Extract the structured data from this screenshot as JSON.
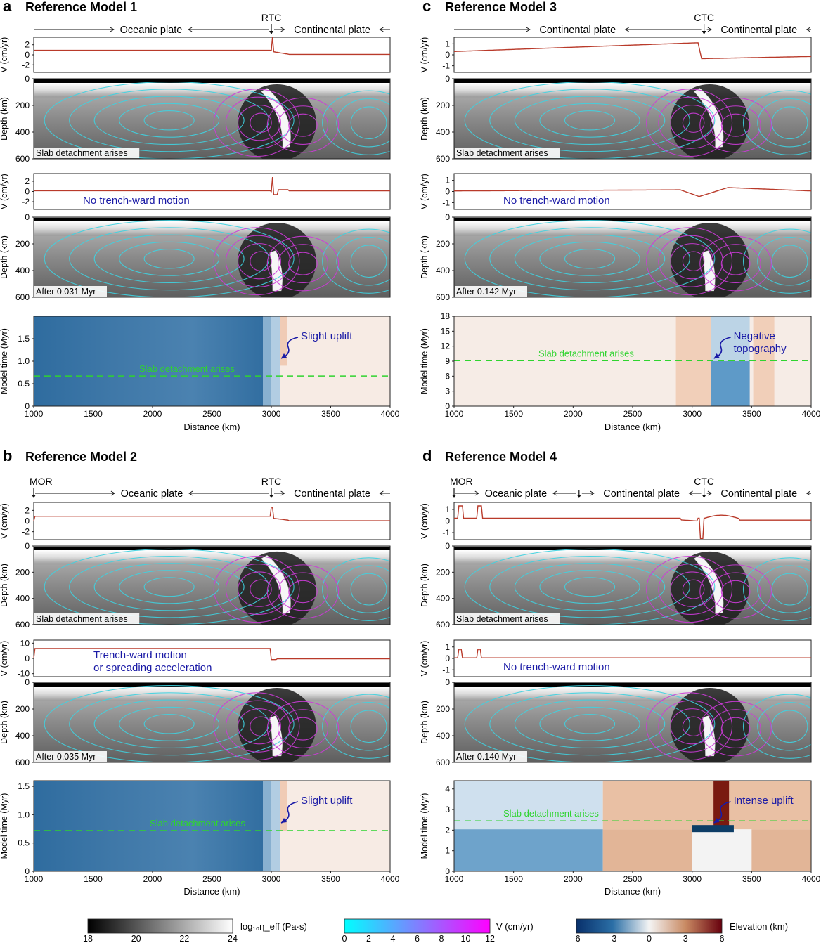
{
  "panels": [
    {
      "letter": "a",
      "title": "Reference Model 1",
      "boundary": {
        "type": "RTC",
        "label": "RTC"
      },
      "plates": [
        "Oceanic plate",
        "Continental plate"
      ],
      "has_mor": false,
      "mor_label": "",
      "mid_arrow": false,
      "velocity_top": {
        "ylabel": "V (cm/yr)",
        "ticks": [
          "2",
          "0",
          "-2"
        ],
        "tick_values": [
          2,
          0,
          -2
        ],
        "range": [
          -3.5,
          3.5
        ]
      },
      "depth_top": {
        "ylabel": "Depth (km)",
        "ticks": [
          "0",
          "200",
          "400",
          "600"
        ],
        "caption": "Slab detachment arises"
      },
      "velocity_mid": {
        "ylabel": "V (cm/yr)",
        "ticks": [
          "2",
          "0",
          "-2"
        ],
        "tick_values": [
          2,
          0,
          -2
        ],
        "range": [
          -3.5,
          3.5
        ],
        "annotation": [
          "No trench-ward motion"
        ]
      },
      "depth_mid": {
        "ylabel": "Depth (km)",
        "ticks": [
          "0",
          "200",
          "400",
          "600"
        ],
        "caption": "After 0.031 Myr"
      },
      "time_plot": {
        "ylabel": "Model time (Myr)",
        "yticks": [
          "0",
          "0.5",
          "1.0",
          "1.5"
        ],
        "ytick_values": [
          0,
          0.5,
          1.0,
          1.5
        ],
        "ymax": 2.0,
        "xlabel": "Distance (km)",
        "xticks": [
          "1000",
          "1500",
          "2000",
          "2500",
          "3000",
          "3500",
          "4000"
        ],
        "detachment_time": 0.67,
        "detachment_label": "Slab detachment arises",
        "annotation": [
          "Slight uplift"
        ]
      }
    },
    {
      "letter": "b",
      "title": "Reference Model 2",
      "boundary": {
        "type": "RTC",
        "label": "RTC"
      },
      "plates": [
        "Oceanic plate",
        "Continental plate"
      ],
      "has_mor": true,
      "mor_label": "MOR",
      "mid_arrow": false,
      "velocity_top": {
        "ylabel": "V (cm/yr)",
        "ticks": [
          "2",
          "0",
          "-2"
        ],
        "tick_values": [
          2,
          0,
          -2
        ],
        "range": [
          -3.5,
          3.5
        ]
      },
      "depth_top": {
        "ylabel": "Depth (km)",
        "ticks": [
          "0",
          "200",
          "400",
          "600"
        ],
        "caption": "Slab detachment arises"
      },
      "velocity_mid": {
        "ylabel": "V (cm/yr)",
        "ticks": [
          "10",
          "0",
          "-10"
        ],
        "tick_values": [
          10,
          0,
          -10
        ],
        "range": [
          -12,
          12
        ],
        "annotation": [
          "Trench-ward motion",
          "or spreading acceleration"
        ]
      },
      "depth_mid": {
        "ylabel": "Depth (km)",
        "ticks": [
          "0",
          "200",
          "400",
          "600"
        ],
        "caption": "After 0.035 Myr"
      },
      "time_plot": {
        "ylabel": "Model time (Myr)",
        "yticks": [
          "0",
          "0.5",
          "1.0",
          "1.5"
        ],
        "ytick_values": [
          0,
          0.5,
          1.0,
          1.5
        ],
        "ymax": 1.6,
        "xlabel": "Distance (km)",
        "xticks": [
          "1000",
          "1500",
          "2000",
          "2500",
          "3000",
          "3500",
          "4000"
        ],
        "detachment_time": 0.72,
        "detachment_label": "Slab detachment arises",
        "annotation": [
          "Slight uplift"
        ]
      }
    },
    {
      "letter": "c",
      "title": "Reference Model 3",
      "boundary": {
        "type": "CTC",
        "label": "CTC"
      },
      "plates": [
        "Continental plate",
        "Continental plate"
      ],
      "has_mor": false,
      "mor_label": "",
      "mid_arrow": false,
      "velocity_top": {
        "ylabel": "V (cm/yr)",
        "ticks": [
          "1",
          "0",
          "-1"
        ],
        "tick_values": [
          1,
          0,
          -1
        ],
        "range": [
          -1.6,
          1.6
        ]
      },
      "depth_top": {
        "ylabel": "Depth (km)",
        "ticks": [
          "0",
          "200",
          "400",
          "600"
        ],
        "caption": "Slab detachment arises"
      },
      "velocity_mid": {
        "ylabel": "V (cm/yr)",
        "ticks": [
          "1",
          "0",
          "-1"
        ],
        "tick_values": [
          1,
          0,
          -1
        ],
        "range": [
          -1.6,
          1.6
        ],
        "annotation": [
          "No trench-ward motion"
        ]
      },
      "depth_mid": {
        "ylabel": "Depth (km)",
        "ticks": [
          "0",
          "200",
          "400",
          "600"
        ],
        "caption": "After 0.142 Myr"
      },
      "time_plot": {
        "ylabel": "Model time (Myr)",
        "yticks": [
          "0",
          "3",
          "6",
          "9",
          "12",
          "15",
          "18"
        ],
        "ytick_values": [
          0,
          3,
          6,
          9,
          12,
          15,
          18
        ],
        "ymax": 18,
        "xlabel": "Distance (km)",
        "xticks": [
          "1000",
          "1500",
          "2000",
          "2500",
          "3000",
          "3500",
          "4000"
        ],
        "detachment_time": 9.1,
        "detachment_label": "Slab detachment arises",
        "annotation": [
          "Negative",
          "topography"
        ]
      }
    },
    {
      "letter": "d",
      "title": "Reference Model 4",
      "boundary": {
        "type": "CTC",
        "label": "CTC"
      },
      "plates": [
        "Oceanic plate",
        "Continental plate",
        "Continental plate"
      ],
      "has_mor": true,
      "mor_label": "MOR",
      "mid_arrow": true,
      "velocity_top": {
        "ylabel": "V (cm/yr)",
        "ticks": [
          "1",
          "0",
          "-1"
        ],
        "tick_values": [
          1,
          0,
          -1
        ],
        "range": [
          -1.6,
          1.6
        ]
      },
      "depth_top": {
        "ylabel": "Depth (km)",
        "ticks": [
          "0",
          "200",
          "400",
          "600"
        ],
        "caption": "Slab detachment arises"
      },
      "velocity_mid": {
        "ylabel": "V (cm/yr)",
        "ticks": [
          "1",
          "0",
          "-1"
        ],
        "tick_values": [
          1,
          0,
          -1
        ],
        "range": [
          -1.6,
          1.6
        ],
        "annotation": [
          "No trench-ward motion"
        ]
      },
      "depth_mid": {
        "ylabel": "Depth (km)",
        "ticks": [
          "0",
          "200",
          "400",
          "600"
        ],
        "caption": "After 0.140 Myr"
      },
      "time_plot": {
        "ylabel": "Model time (Myr)",
        "yticks": [
          "0",
          "1",
          "2",
          "3",
          "4"
        ],
        "ytick_values": [
          0,
          1,
          2,
          3,
          4
        ],
        "ymax": 4.4,
        "xlabel": "Distance (km)",
        "xticks": [
          "1000",
          "1500",
          "2000",
          "2500",
          "3000",
          "3500",
          "4000"
        ],
        "detachment_time": 2.45,
        "detachment_label": "Slab detachment arises",
        "annotation": [
          "Intense uplift"
        ]
      }
    }
  ],
  "colorbars": [
    {
      "label": "log₁₀η_eff (Pa·s)",
      "ticks": [
        "18",
        "20",
        "22",
        "24"
      ],
      "colors": [
        "#000000",
        "#ffffff"
      ]
    },
    {
      "label": "V (cm/yr)",
      "ticks": [
        "0",
        "2",
        "4",
        "6",
        "8",
        "10",
        "12"
      ],
      "colors": [
        "#00ffff",
        "#ff00ff"
      ]
    },
    {
      "label": "Elevation (km)",
      "ticks": [
        "-6",
        "-3",
        "0",
        "3",
        "6"
      ],
      "colors": [
        "#08306b",
        "#2b6fa6",
        "#f4f4f4",
        "#c98a63",
        "#67000d"
      ]
    }
  ],
  "colors": {
    "velocity_line": "#b93a2a",
    "streamline_low": "#3fd2e0",
    "streamline_high": "#cc3bd8",
    "detachment_line": "#2fd42f",
    "annotation": "#1a1aa6",
    "ocean_blue": "#3f78a8",
    "uplift_orange": "#f0cbb5"
  }
}
